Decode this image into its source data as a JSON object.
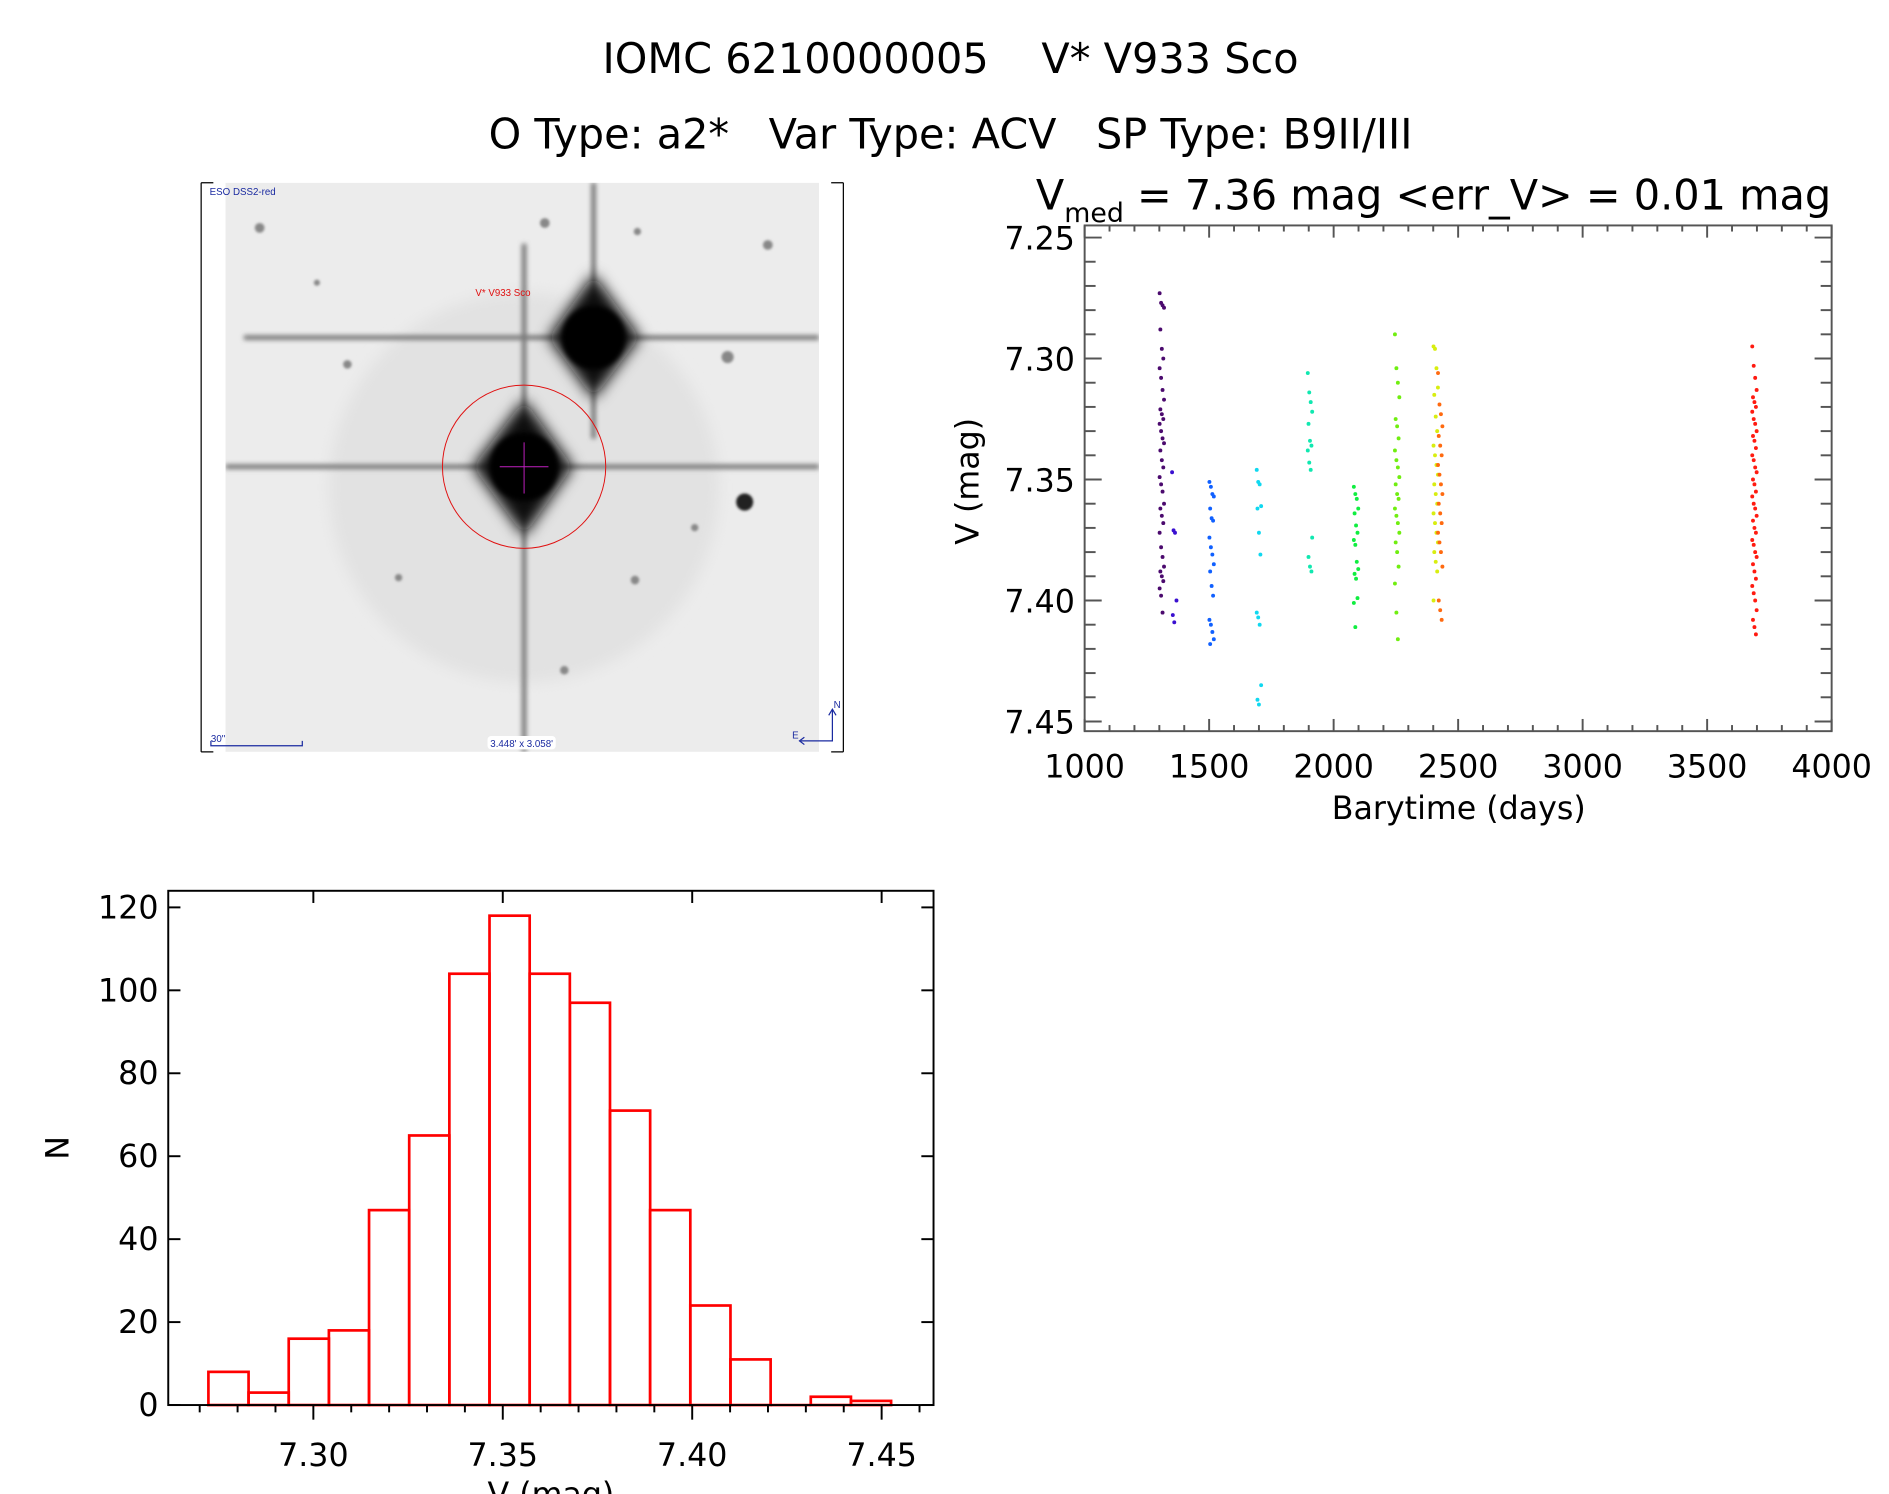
{
  "header": {
    "title": "IOMC 6210000005    V* V933 Sco",
    "subtitle": "O Type: a2*   Var Type: ACV   SP Type: B9II/III"
  },
  "image_panel": {
    "survey_label": "ESO DSS2-red",
    "target_label": "V* V933 Sco",
    "scale_label": "30\"",
    "size_label": "3.448' x 3.058'",
    "north_label": "N",
    "east_label": "E",
    "marker_color": "#e01010",
    "overlay_color": "#1a2aa0"
  },
  "chart_data": [
    {
      "type": "scatter",
      "title_prefix": "V",
      "title_subscript": "med",
      "title_rest": " = 7.36 mag <err_V> = 0.01 mag",
      "xlabel": "Barytime (days)",
      "ylabel": "V (mag)",
      "xlim": [
        1000,
        4000
      ],
      "ylim": [
        7.245,
        7.454
      ],
      "y_reversed": true,
      "xticks": [
        "1000",
        "1500",
        "2000",
        "2500",
        "3000",
        "3500",
        "4000"
      ],
      "yticks": [
        "7.25",
        "7.30",
        "7.35",
        "7.40",
        "7.45"
      ],
      "grid": false,
      "series": [
        {
          "x": 1310,
          "color": "#4b0a6e",
          "y": [
            7.273,
            7.277,
            7.278,
            7.279,
            7.288,
            7.296,
            7.3,
            7.304,
            7.308,
            7.313,
            7.317,
            7.321,
            7.323,
            7.325,
            7.327,
            7.33,
            7.333,
            7.335,
            7.338,
            7.342,
            7.345,
            7.349,
            7.352,
            7.355,
            7.36,
            7.362,
            7.365,
            7.368,
            7.372,
            7.378,
            7.382,
            7.386,
            7.388,
            7.39,
            7.392,
            7.395,
            7.398,
            7.405
          ]
        },
        {
          "x": 1360,
          "color": "#3a10d0",
          "y": [
            7.347,
            7.371,
            7.372,
            7.4,
            7.406,
            7.409
          ]
        },
        {
          "x": 1510,
          "color": "#1060ff",
          "y": [
            7.351,
            7.353,
            7.356,
            7.357,
            7.362,
            7.366,
            7.367,
            7.374,
            7.378,
            7.381,
            7.385,
            7.388,
            7.394,
            7.398,
            7.408,
            7.41,
            7.413,
            7.416,
            7.418
          ]
        },
        {
          "x": 1700,
          "color": "#10d8f0",
          "y": [
            7.346,
            7.351,
            7.352,
            7.361,
            7.362,
            7.372,
            7.381,
            7.405,
            7.407,
            7.41,
            7.435,
            7.441,
            7.443
          ]
        },
        {
          "x": 1905,
          "color": "#10e8b0",
          "y": [
            7.306,
            7.314,
            7.318,
            7.322,
            7.327,
            7.334,
            7.336,
            7.338,
            7.343,
            7.346,
            7.374,
            7.382,
            7.386,
            7.388
          ]
        },
        {
          "x": 2090,
          "color": "#10ee40",
          "y": [
            7.353,
            7.356,
            7.358,
            7.362,
            7.364,
            7.369,
            7.372,
            7.375,
            7.377,
            7.384,
            7.387,
            7.389,
            7.391,
            7.399,
            7.401,
            7.411
          ]
        },
        {
          "x": 2255,
          "color": "#70ee10",
          "y": [
            7.29,
            7.304,
            7.31,
            7.316,
            7.325,
            7.328,
            7.333,
            7.338,
            7.342,
            7.345,
            7.349,
            7.352,
            7.356,
            7.358,
            7.362,
            7.365,
            7.368,
            7.372,
            7.376,
            7.38,
            7.386,
            7.393,
            7.405,
            7.416
          ]
        },
        {
          "x": 2410,
          "color": "#d8ee10",
          "y": [
            7.295,
            7.296,
            7.304,
            7.312,
            7.315,
            7.324,
            7.33,
            7.336,
            7.34,
            7.344,
            7.348,
            7.352,
            7.356,
            7.36,
            7.364,
            7.368,
            7.372,
            7.376,
            7.38,
            7.384,
            7.388,
            7.4
          ]
        },
        {
          "x": 2428,
          "color": "#ff6a10",
          "y": [
            7.306,
            7.319,
            7.323,
            7.328,
            7.332,
            7.336,
            7.34,
            7.344,
            7.348,
            7.352,
            7.356,
            7.36,
            7.364,
            7.368,
            7.372,
            7.376,
            7.38,
            7.386,
            7.4,
            7.404,
            7.408
          ]
        },
        {
          "x": 3690,
          "color": "#ff1a10",
          "y": [
            7.295,
            7.303,
            7.308,
            7.313,
            7.316,
            7.318,
            7.32,
            7.322,
            7.325,
            7.327,
            7.33,
            7.332,
            7.334,
            7.337,
            7.34,
            7.342,
            7.345,
            7.347,
            7.35,
            7.352,
            7.355,
            7.357,
            7.36,
            7.362,
            7.365,
            7.367,
            7.37,
            7.372,
            7.375,
            7.377,
            7.38,
            7.382,
            7.385,
            7.388,
            7.391,
            7.394,
            7.397,
            7.4,
            7.404,
            7.408,
            7.411,
            7.414
          ]
        }
      ]
    },
    {
      "type": "bar",
      "subtype": "histogram",
      "xlabel": "V (mag)",
      "ylabel": "N",
      "xlim": [
        7.2617,
        7.4637
      ],
      "ylim": [
        0,
        124
      ],
      "xticks": [
        "7.30",
        "7.35",
        "7.40",
        "7.45"
      ],
      "yticks": [
        "0",
        "20",
        "40",
        "60",
        "80",
        "100",
        "120"
      ],
      "bin_start": 7.2723,
      "bin_width": 0.0106,
      "values": [
        8,
        3,
        16,
        18,
        47,
        65,
        104,
        118,
        104,
        97,
        71,
        47,
        24,
        11,
        0,
        2,
        1
      ],
      "color": "#ff0000",
      "grid": false
    }
  ]
}
